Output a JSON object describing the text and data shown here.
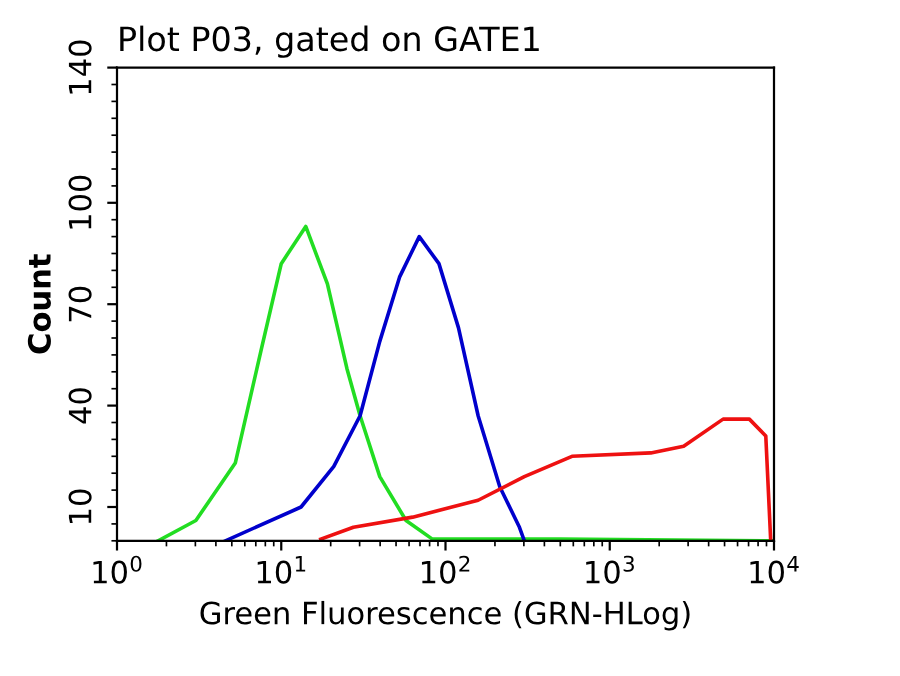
{
  "chart_data": {
    "type": "line",
    "title": "Plot P03, gated on GATE1",
    "xlabel": "Green Fluorescence (GRN-HLog)",
    "ylabel": "Count",
    "log": "x",
    "xlim": [
      1,
      10000
    ],
    "xticks": [
      {
        "value": 1,
        "label": "10$^{0}$"
      },
      {
        "value": 10,
        "label": "10$^{1}$"
      },
      {
        "value": 100,
        "label": "10$^{2}$"
      },
      {
        "value": 1000,
        "label": "10$^{3}$"
      },
      {
        "value": 10000,
        "label": "10$^{4}$"
      }
    ],
    "ylim": [
      0,
      140
    ],
    "yticks": [
      10,
      40,
      70,
      100,
      140
    ],
    "grid": false,
    "legend": false,
    "marker": "none",
    "line_style": "solid",
    "series": [
      {
        "color": "#22dd22",
        "x": [
          1.78,
          3.02,
          5.25,
          7.59,
          10,
          14.1,
          19.1,
          25.1,
          30.2,
          39.8,
          57.5,
          83.2,
          500,
          10000
        ],
        "values": [
          0,
          6,
          23,
          57,
          82,
          93,
          76,
          51,
          37,
          19,
          6,
          0.5,
          0.5,
          0
        ]
      },
      {
        "color": "#0000cc",
        "x": [
          4.57,
          13.2,
          20.9,
          30.2,
          39.8,
          52.5,
          69.2,
          91.2,
          120,
          158,
          214,
          282,
          302
        ],
        "values": [
          0,
          10,
          22,
          37,
          59,
          78,
          90,
          82,
          63,
          37,
          16,
          4,
          0
        ]
      },
      {
        "color": "#ee1111",
        "x": [
          17.4,
          27.5,
          63.1,
          158,
          302,
          589,
          1778,
          2818,
          4898,
          7079,
          8913,
          9550
        ],
        "values": [
          0.5,
          4,
          7,
          12,
          19,
          25,
          26,
          28,
          36,
          36,
          31,
          0
        ]
      }
    ]
  }
}
